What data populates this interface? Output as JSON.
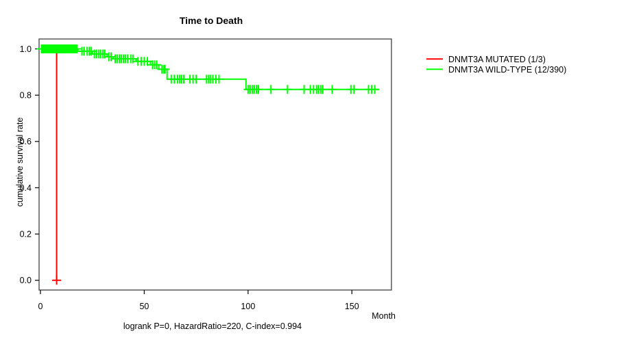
{
  "chart_data": {
    "type": "line",
    "subtype": "kaplan-meier-step",
    "title": "Time to Death",
    "subtitle": "logrank P=0, HazardRatio=220, C-index=0.994",
    "xlabel": "Month",
    "ylabel": "cumulative survival rate",
    "xlim": [
      0,
      169
    ],
    "ylim": [
      0,
      1
    ],
    "grid": false,
    "legend_position": "right-outside",
    "x_ticks": [
      {
        "value": 0,
        "label": "0"
      },
      {
        "value": 50,
        "label": "50"
      },
      {
        "value": 100,
        "label": "100"
      },
      {
        "value": 150,
        "label": "150"
      }
    ],
    "y_ticks": [
      {
        "value": 0.0,
        "label": "0.0"
      },
      {
        "value": 0.2,
        "label": "0.2"
      },
      {
        "value": 0.4,
        "label": "0.4"
      },
      {
        "value": 0.6,
        "label": "0.6"
      },
      {
        "value": 0.8,
        "label": "0.8"
      },
      {
        "value": 1.0,
        "label": "1.0"
      }
    ],
    "series": [
      {
        "name": "DNMT3A MUTATED (1/3)",
        "color": "#ff0000",
        "start_survival": 1.0,
        "end_time": 7.8,
        "steps": [
          [
            7.8,
            0.0
          ]
        ],
        "censor_times": [
          7.8
        ]
      },
      {
        "name": "DNMT3A WILD-TYPE (12/390)",
        "color": "#00ff00",
        "start_survival": 1.0,
        "end_time": 163,
        "steps": [
          [
            18,
            0.99
          ],
          [
            25,
            0.978
          ],
          [
            32,
            0.966
          ],
          [
            35,
            0.957
          ],
          [
            46,
            0.946
          ],
          [
            53,
            0.931
          ],
          [
            57,
            0.912
          ],
          [
            61,
            0.869
          ],
          [
            99,
            0.825
          ]
        ],
        "censor_times": [
          0.5,
          1,
          1.5,
          2,
          2.5,
          3,
          3.5,
          4,
          4.5,
          5,
          5.5,
          6,
          6.5,
          7,
          7.5,
          8,
          8.5,
          9,
          9.5,
          10,
          10.5,
          11,
          11.5,
          12,
          12.5,
          13,
          13.5,
          14,
          14.5,
          15,
          15.5,
          16,
          16.5,
          17,
          17.5,
          20,
          21,
          22.5,
          23.5,
          24.5,
          26,
          27,
          28,
          29,
          30,
          31,
          33,
          34,
          36,
          37,
          38,
          39,
          40,
          41,
          42,
          43.5,
          44.5,
          47,
          48.5,
          50,
          51.5,
          54,
          55,
          56,
          58.5,
          59.5,
          60,
          63,
          64.5,
          66,
          67,
          68,
          69,
          72,
          73.5,
          75,
          80,
          81,
          82,
          83,
          84.5,
          86,
          100,
          101,
          102,
          103,
          104,
          105,
          111,
          119,
          127,
          130,
          131.5,
          133,
          134,
          135,
          136,
          140.5,
          149.5,
          151,
          158,
          159.5,
          161
        ]
      }
    ],
    "colors": {
      "mutated": "#ff0000",
      "wildtype": "#00ff00",
      "box": "#4d4d4d",
      "axis": "#111111",
      "text": "#000000",
      "background": "#ffffff"
    }
  }
}
